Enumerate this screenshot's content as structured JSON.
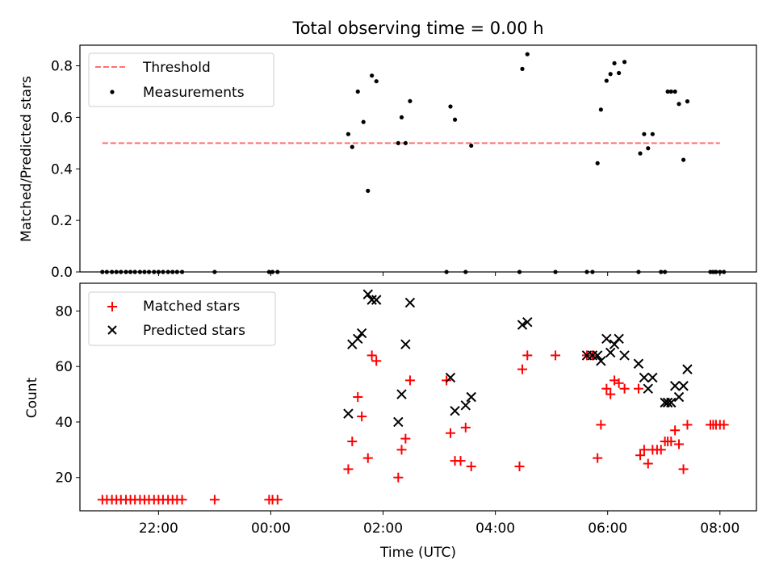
{
  "figure": {
    "title": "Total observing time = 0.00 h",
    "xlabel": "Time (UTC)",
    "x_tick_labels": [
      "22:00",
      "00:00",
      "02:00",
      "04:00",
      "06:00",
      "08:00"
    ]
  },
  "chart_data": [
    {
      "type": "scatter",
      "panel": "top",
      "title": "Total observing time = 0.00 h",
      "xlabel": "",
      "ylabel": "Matched/Predicted stars",
      "x_unit": "hours since 00:00 UTC",
      "xlim": [
        -3.4,
        8.65
      ],
      "ylim": [
        0.0,
        0.88
      ],
      "y_ticks": [
        0.0,
        0.2,
        0.4,
        0.6,
        0.8
      ],
      "y_tick_labels": [
        "0.0",
        "0.2",
        "0.4",
        "0.6",
        "0.8"
      ],
      "legend": "upper-left",
      "threshold": {
        "name": "Threshold",
        "y": 0.5,
        "x_range": [
          -3.0,
          8.0
        ],
        "color": "#ff7070",
        "style": "dashed"
      },
      "series": [
        {
          "name": "Measurements",
          "color": "#000000",
          "marker": "dot",
          "x": [
            -3.0,
            -2.92,
            -2.83,
            -2.75,
            -2.67,
            -2.58,
            -2.5,
            -2.42,
            -2.33,
            -2.25,
            -2.17,
            -2.08,
            -2.0,
            -1.92,
            -1.83,
            -1.75,
            -1.67,
            -1.58,
            -1.0,
            -0.03,
            0.03,
            0.12,
            1.38,
            1.45,
            1.55,
            1.65,
            1.73,
            1.8,
            1.88,
            2.27,
            2.33,
            2.4,
            2.48,
            3.13,
            3.2,
            3.28,
            3.47,
            3.57,
            4.43,
            4.48,
            4.57,
            5.07,
            5.63,
            5.73,
            5.82,
            5.88,
            5.98,
            6.05,
            6.12,
            6.2,
            6.3,
            6.55,
            6.58,
            6.65,
            6.72,
            6.8,
            6.95,
            7.02,
            7.07,
            7.13,
            7.2,
            7.27,
            7.35,
            7.42,
            7.83,
            7.88,
            7.93,
            8.0,
            8.07
          ],
          "y": [
            0,
            0,
            0,
            0,
            0,
            0,
            0,
            0,
            0,
            0,
            0,
            0,
            0,
            0,
            0,
            0,
            0,
            0,
            0,
            0,
            0,
            0,
            0.535,
            0.485,
            0.7,
            0.582,
            0.315,
            0.762,
            0.74,
            0.5,
            0.6,
            0.5,
            0.663,
            0,
            0.642,
            0.591,
            0,
            0.49,
            0,
            0.788,
            0.845,
            0,
            0,
            0,
            0.422,
            0.63,
            0.742,
            0.768,
            0.81,
            0.772,
            0.815,
            0,
            0.46,
            0.535,
            0.48,
            0.535,
            0,
            0,
            0.7,
            0.7,
            0.7,
            0.652,
            0.435,
            0.662,
            0,
            0,
            0,
            0,
            0
          ]
        }
      ]
    },
    {
      "type": "scatter",
      "panel": "bottom",
      "xlabel": "Time (UTC)",
      "ylabel": "Count",
      "x_unit": "hours since 00:00 UTC",
      "xlim": [
        -3.4,
        8.65
      ],
      "ylim": [
        8,
        90
      ],
      "y_ticks": [
        20,
        40,
        60,
        80
      ],
      "y_tick_labels": [
        "20",
        "40",
        "60",
        "80"
      ],
      "legend": "upper-left",
      "series": [
        {
          "name": "Matched stars",
          "color": "#ff0000",
          "marker": "plus",
          "x": [
            -3.0,
            -2.92,
            -2.83,
            -2.75,
            -2.67,
            -2.58,
            -2.5,
            -2.42,
            -2.33,
            -2.25,
            -2.17,
            -2.08,
            -2.0,
            -1.92,
            -1.83,
            -1.75,
            -1.67,
            -1.58,
            -1.0,
            -0.03,
            0.03,
            0.12,
            1.38,
            1.45,
            1.55,
            1.62,
            1.73,
            1.8,
            1.88,
            2.27,
            2.33,
            2.4,
            2.48,
            3.13,
            3.2,
            3.28,
            3.38,
            3.47,
            3.57,
            4.43,
            4.48,
            4.57,
            5.07,
            5.63,
            5.73,
            5.82,
            5.88,
            5.98,
            6.05,
            6.12,
            6.2,
            6.3,
            6.55,
            6.58,
            6.65,
            6.72,
            6.8,
            6.88,
            6.95,
            7.02,
            7.07,
            7.13,
            7.2,
            7.27,
            7.35,
            7.42,
            7.83,
            7.88,
            7.93,
            8.0,
            8.07
          ],
          "y": [
            12,
            12,
            12,
            12,
            12,
            12,
            12,
            12,
            12,
            12,
            12,
            12,
            12,
            12,
            12,
            12,
            12,
            12,
            12,
            12,
            12,
            12,
            23,
            33,
            49,
            42,
            27,
            64,
            62,
            20,
            30,
            34,
            55,
            55,
            36,
            26,
            26,
            38,
            24,
            24,
            59,
            64,
            64,
            64,
            64,
            27,
            39,
            52,
            50,
            55,
            54,
            52,
            52,
            28,
            30,
            25,
            30,
            30,
            30,
            33,
            33,
            33,
            37,
            32,
            23,
            39,
            39,
            39,
            39,
            39,
            39
          ]
        },
        {
          "name": "Predicted stars",
          "color": "#000000",
          "marker": "x",
          "x": [
            1.38,
            1.45,
            1.55,
            1.62,
            1.73,
            1.8,
            1.88,
            2.27,
            2.33,
            2.4,
            2.48,
            3.2,
            3.28,
            3.47,
            3.57,
            4.48,
            4.57,
            5.63,
            5.73,
            5.82,
            5.88,
            5.98,
            6.05,
            6.12,
            6.2,
            6.3,
            6.55,
            6.65,
            6.72,
            6.8,
            7.02,
            7.07,
            7.13,
            7.2,
            7.27,
            7.35,
            7.42
          ],
          "y": [
            43,
            68,
            70,
            72,
            86,
            84,
            84,
            40,
            50,
            68,
            83,
            56,
            44,
            46,
            49,
            75,
            76,
            64,
            64,
            64,
            62,
            70,
            65,
            68,
            70,
            64,
            61,
            56,
            52,
            56,
            47,
            47,
            47,
            53,
            49,
            53,
            59
          ]
        }
      ]
    }
  ]
}
